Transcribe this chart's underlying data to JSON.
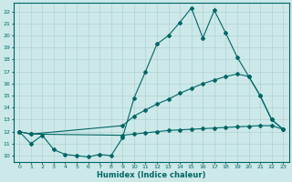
{
  "xlabel": "Humidex (Indice chaleur)",
  "xlim": [
    -0.5,
    23.5
  ],
  "ylim": [
    9.5,
    22.7
  ],
  "xticks": [
    0,
    1,
    2,
    3,
    4,
    5,
    6,
    7,
    8,
    9,
    10,
    11,
    12,
    13,
    14,
    15,
    16,
    17,
    18,
    19,
    20,
    21,
    22,
    23
  ],
  "yticks": [
    10,
    11,
    12,
    13,
    14,
    15,
    16,
    17,
    18,
    19,
    20,
    21,
    22
  ],
  "bg_color": "#cce8e8",
  "line_color": "#006666",
  "grid_color": "#aacccc",
  "line1_x": [
    0,
    1,
    2,
    3,
    4,
    5,
    6,
    7,
    8,
    9,
    10,
    11,
    12,
    13,
    14,
    15,
    16,
    17,
    18,
    19,
    20,
    21,
    22,
    23
  ],
  "line1_y": [
    12.0,
    11.0,
    11.7,
    10.5,
    10.1,
    10.0,
    9.9,
    10.1,
    10.0,
    11.5,
    14.8,
    17.0,
    19.3,
    20.0,
    21.1,
    22.3,
    19.8,
    22.1,
    20.2,
    18.2,
    16.6,
    15.0,
    13.0,
    12.2
  ],
  "line2_x": [
    0,
    1,
    9,
    10,
    11,
    12,
    13,
    14,
    15,
    16,
    17,
    18,
    19,
    20,
    21,
    22,
    23
  ],
  "line2_y": [
    12.0,
    11.8,
    12.5,
    13.3,
    13.8,
    14.3,
    14.7,
    15.2,
    15.6,
    16.0,
    16.3,
    16.6,
    16.8,
    16.6,
    15.0,
    13.0,
    12.2
  ],
  "line3_x": [
    0,
    1,
    9,
    10,
    11,
    12,
    13,
    14,
    15,
    16,
    17,
    18,
    19,
    20,
    21,
    22,
    23
  ],
  "line3_y": [
    12.0,
    11.8,
    11.7,
    11.8,
    11.9,
    12.0,
    12.1,
    12.15,
    12.2,
    12.25,
    12.3,
    12.35,
    12.4,
    12.45,
    12.5,
    12.5,
    12.2
  ]
}
